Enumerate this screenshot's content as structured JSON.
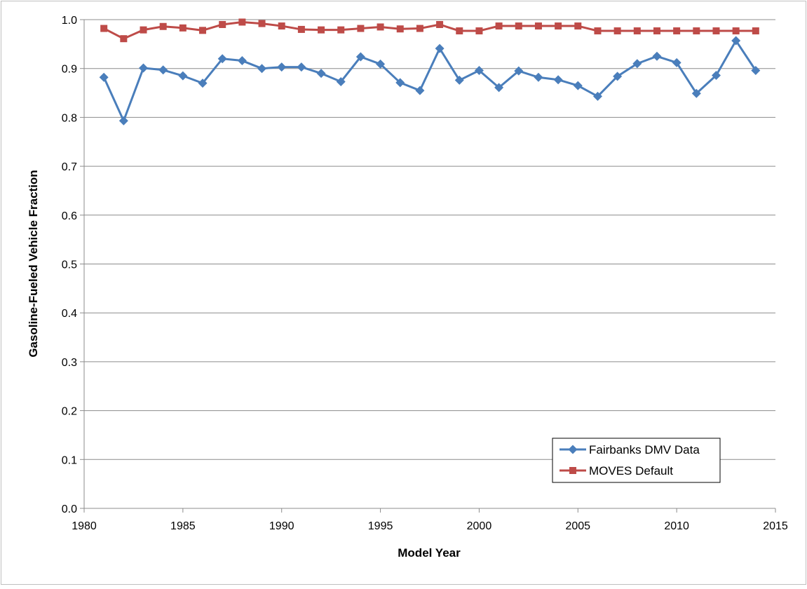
{
  "chart_data": {
    "type": "line",
    "title": "",
    "xlabel": "Model Year",
    "ylabel": "Gasoline-Fueled Vehicle Fraction",
    "xlim": [
      1980,
      2015
    ],
    "ylim": [
      0.0,
      1.0
    ],
    "x_ticks": [
      "1980",
      "1985",
      "1990",
      "1995",
      "2000",
      "2005",
      "2010",
      "2015"
    ],
    "y_ticks": [
      "0.0",
      "0.1",
      "0.2",
      "0.3",
      "0.4",
      "0.5",
      "0.6",
      "0.7",
      "0.8",
      "0.9",
      "1.0"
    ],
    "grid": "horizontal",
    "legend_position": "bottom-right",
    "x": [
      1981,
      1982,
      1983,
      1984,
      1985,
      1986,
      1987,
      1988,
      1989,
      1990,
      1991,
      1992,
      1993,
      1994,
      1995,
      1996,
      1997,
      1998,
      1999,
      2000,
      2001,
      2002,
      2003,
      2004,
      2005,
      2006,
      2007,
      2008,
      2009,
      2010,
      2011,
      2012,
      2013,
      2014
    ],
    "series": [
      {
        "name": "Fairbanks DMV Data",
        "color": "#4a7ebb",
        "marker": "diamond",
        "values": [
          0.882,
          0.793,
          0.901,
          0.897,
          0.885,
          0.87,
          0.92,
          0.916,
          0.9,
          0.903,
          0.903,
          0.89,
          0.873,
          0.924,
          0.909,
          0.871,
          0.855,
          0.941,
          0.876,
          0.896,
          0.861,
          0.895,
          0.882,
          0.877,
          0.865,
          0.843,
          0.884,
          0.91,
          0.925,
          0.912,
          0.849,
          0.886,
          0.957,
          0.896
        ]
      },
      {
        "name": "MOVES Default",
        "color": "#be4b48",
        "marker": "square",
        "values": [
          0.982,
          0.961,
          0.979,
          0.986,
          0.983,
          0.978,
          0.99,
          0.995,
          0.992,
          0.987,
          0.98,
          0.979,
          0.979,
          0.982,
          0.985,
          0.981,
          0.982,
          0.99,
          0.977,
          0.977,
          0.987,
          0.987,
          0.987,
          0.987,
          0.987,
          0.977,
          0.977,
          0.977,
          0.977,
          0.977,
          0.977,
          0.977,
          0.977,
          0.977
        ]
      }
    ]
  }
}
